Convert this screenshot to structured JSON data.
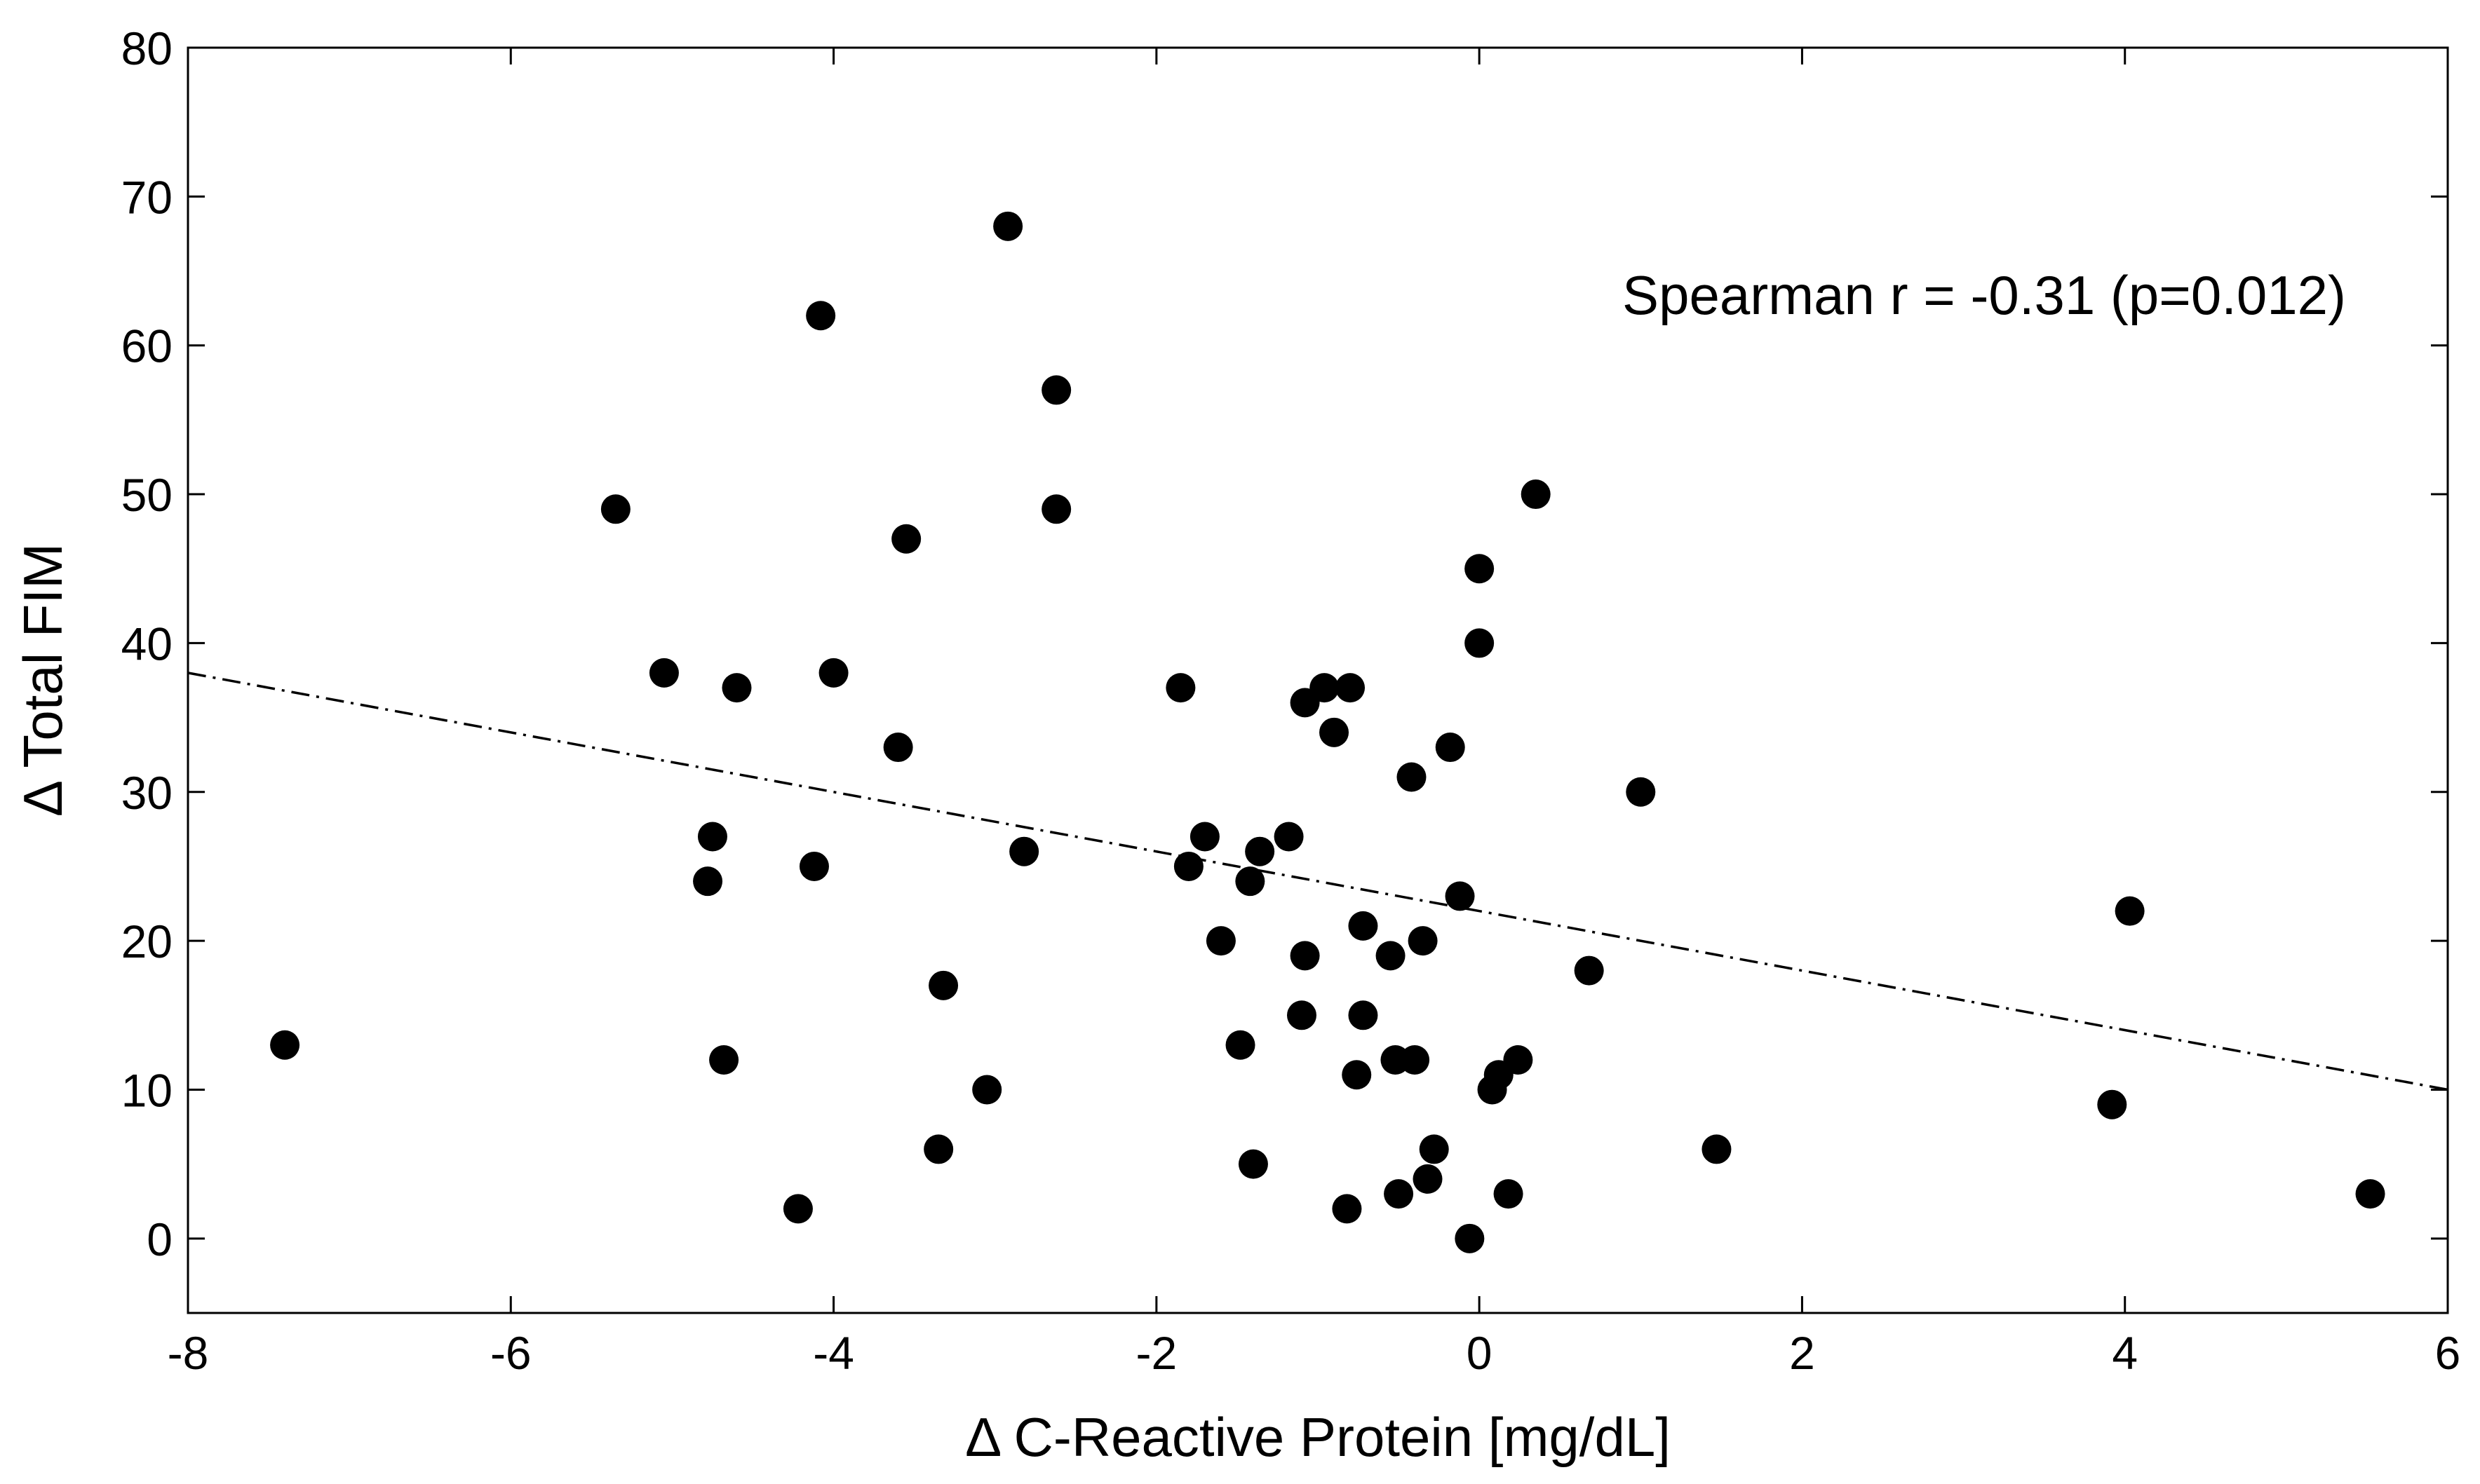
{
  "chart_data": {
    "type": "scatter",
    "title": "",
    "xlabel": "Δ C-Reactive Protein [mg/dL]",
    "ylabel": "Δ Total FIM",
    "xlim": [
      -8,
      6
    ],
    "ylim": [
      -5,
      80
    ],
    "xticks": [
      -8,
      -6,
      -4,
      -2,
      0,
      2,
      4,
      6
    ],
    "yticks": [
      0,
      10,
      20,
      30,
      40,
      50,
      60,
      70,
      80
    ],
    "xtick_labels": [
      "-8",
      "-6",
      "-4",
      "-2",
      "0",
      "2",
      "4",
      "6"
    ],
    "ytick_labels": [
      "0",
      "10",
      "20",
      "30",
      "40",
      "50",
      "60",
      "70",
      "80"
    ],
    "grid": false,
    "annotation": "Spearman r = -0.31 (p=0.012)",
    "marker_color": "#000000",
    "fit_line": {
      "style": "dash-dot",
      "x": [
        -8,
        6
      ],
      "y": [
        38,
        10
      ]
    },
    "points": [
      {
        "x": -7.4,
        "y": 13
      },
      {
        "x": -5.35,
        "y": 49
      },
      {
        "x": -5.05,
        "y": 38
      },
      {
        "x": -4.6,
        "y": 37
      },
      {
        "x": -4.75,
        "y": 27
      },
      {
        "x": -4.78,
        "y": 24
      },
      {
        "x": -4.68,
        "y": 12
      },
      {
        "x": -4.22,
        "y": 2
      },
      {
        "x": -4.08,
        "y": 62
      },
      {
        "x": -4.0,
        "y": 38
      },
      {
        "x": -4.12,
        "y": 25
      },
      {
        "x": -3.6,
        "y": 33
      },
      {
        "x": -3.55,
        "y": 47
      },
      {
        "x": -3.32,
        "y": 17
      },
      {
        "x": -3.35,
        "y": 6
      },
      {
        "x": -3.05,
        "y": 10
      },
      {
        "x": -2.92,
        "y": 68
      },
      {
        "x": -2.82,
        "y": 26
      },
      {
        "x": -2.62,
        "y": 57
      },
      {
        "x": -2.62,
        "y": 49
      },
      {
        "x": -1.85,
        "y": 37
      },
      {
        "x": -1.8,
        "y": 25
      },
      {
        "x": -1.7,
        "y": 27
      },
      {
        "x": -1.6,
        "y": 20
      },
      {
        "x": -1.48,
        "y": 13
      },
      {
        "x": -1.42,
        "y": 24
      },
      {
        "x": -1.4,
        "y": 5
      },
      {
        "x": -1.36,
        "y": 26
      },
      {
        "x": -1.18,
        "y": 27
      },
      {
        "x": -1.08,
        "y": 36
      },
      {
        "x": -1.08,
        "y": 19
      },
      {
        "x": -1.1,
        "y": 15
      },
      {
        "x": -0.96,
        "y": 37
      },
      {
        "x": -0.9,
        "y": 34
      },
      {
        "x": -0.8,
        "y": 37
      },
      {
        "x": -0.72,
        "y": 21
      },
      {
        "x": -0.72,
        "y": 15
      },
      {
        "x": -0.76,
        "y": 11
      },
      {
        "x": -0.82,
        "y": 2
      },
      {
        "x": -0.55,
        "y": 19
      },
      {
        "x": -0.52,
        "y": 12
      },
      {
        "x": -0.5,
        "y": 3
      },
      {
        "x": -0.42,
        "y": 31
      },
      {
        "x": -0.4,
        "y": 12
      },
      {
        "x": -0.35,
        "y": 20
      },
      {
        "x": -0.32,
        "y": 4
      },
      {
        "x": -0.28,
        "y": 6
      },
      {
        "x": -0.18,
        "y": 33
      },
      {
        "x": -0.12,
        "y": 23
      },
      {
        "x": -0.06,
        "y": 0
      },
      {
        "x": 0.0,
        "y": 45
      },
      {
        "x": 0.0,
        "y": 40
      },
      {
        "x": 0.08,
        "y": 10
      },
      {
        "x": 0.12,
        "y": 11
      },
      {
        "x": 0.18,
        "y": 3
      },
      {
        "x": 0.24,
        "y": 12
      },
      {
        "x": 0.35,
        "y": 50
      },
      {
        "x": 0.68,
        "y": 18
      },
      {
        "x": 1.0,
        "y": 30
      },
      {
        "x": 1.47,
        "y": 6
      },
      {
        "x": 3.92,
        "y": 9
      },
      {
        "x": 4.03,
        "y": 22
      },
      {
        "x": 5.52,
        "y": 3
      }
    ]
  }
}
